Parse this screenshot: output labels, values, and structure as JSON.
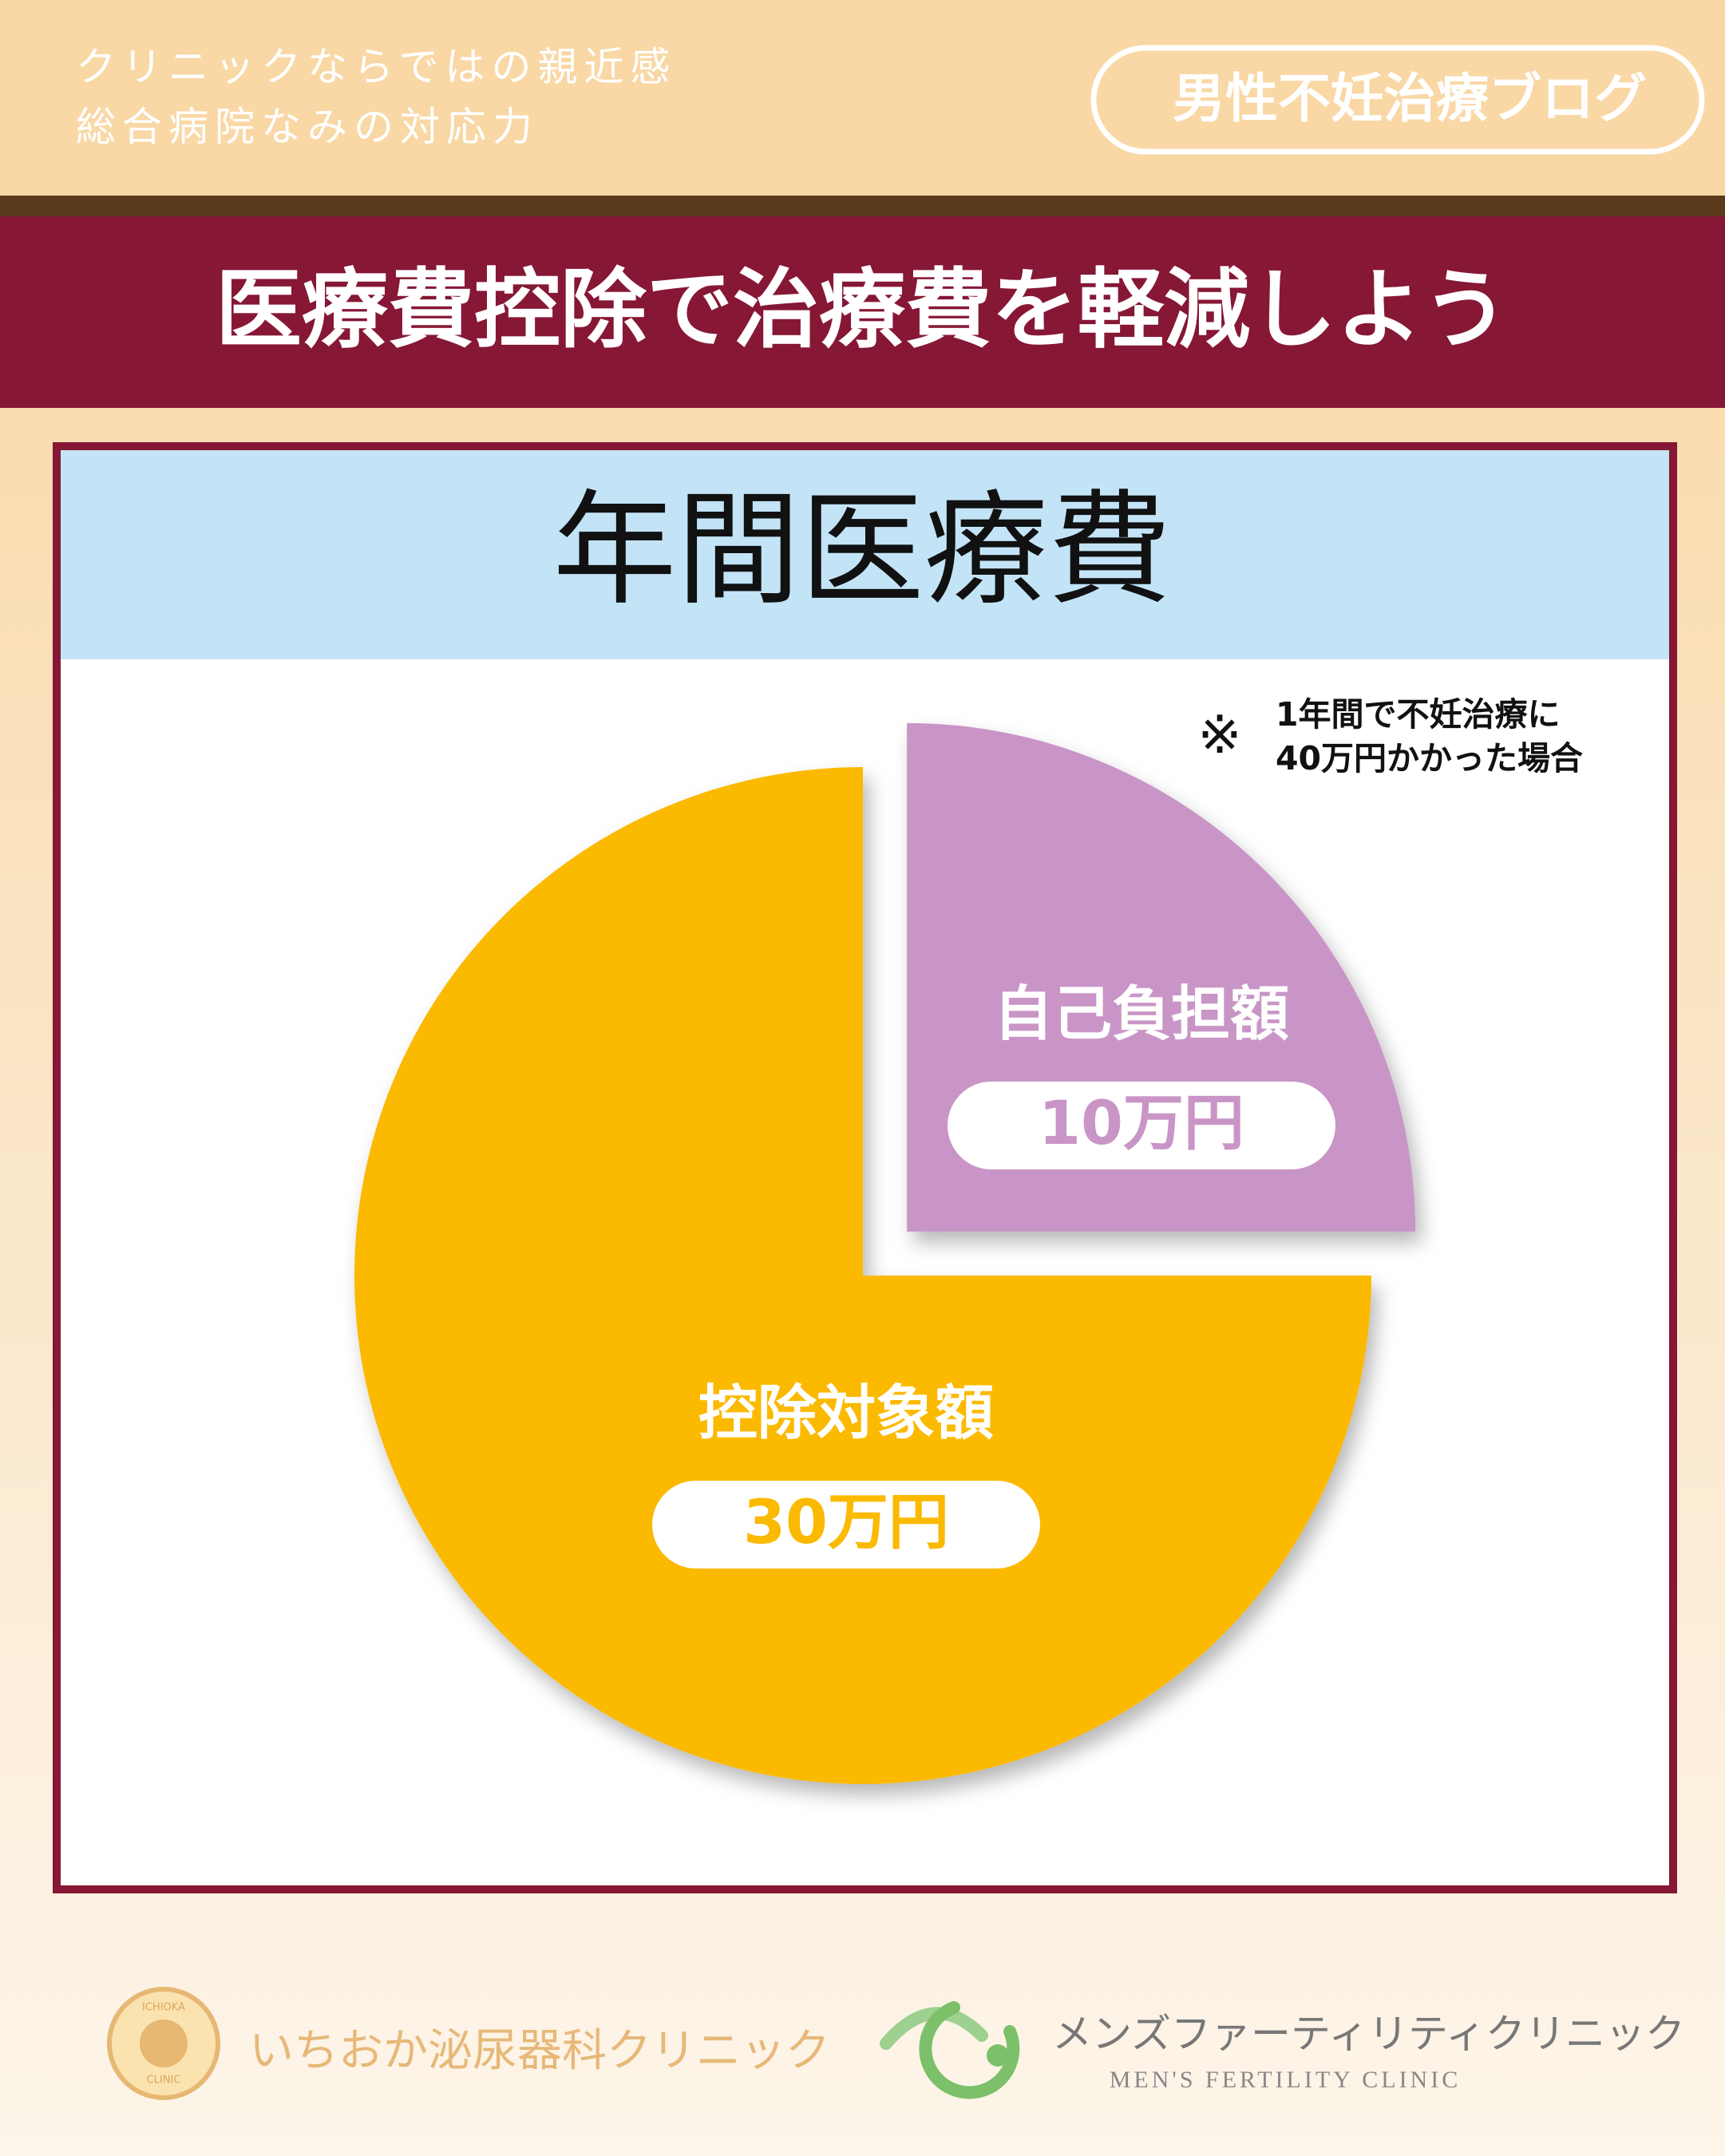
{
  "header": {
    "tagline": [
      "クリニックならではの親近感",
      "総合病院なみの対応力"
    ],
    "badge": "男性不妊治療ブログ"
  },
  "title": "医療費控除で治療費を軽減しよう",
  "chart_data": {
    "type": "pie",
    "title": "年間医療費",
    "categories": [
      "控除対象額",
      "自己負担額"
    ],
    "values": [
      30,
      10
    ],
    "value_labels": [
      "30万円",
      "10万円"
    ],
    "colors": [
      "#fbb900",
      "#c995c6"
    ],
    "explode": [
      false,
      true
    ],
    "annotation": [
      "※",
      "1年間で不妊治療に",
      "40万円かかった場合"
    ]
  },
  "footer": {
    "left": {
      "name": "いちおか泌尿器科クリニック",
      "emblem_top": "ICHIOKA",
      "emblem_bottom": "CLINIC"
    },
    "right": {
      "name": "メンズファーティリティクリニック",
      "name_en": "MEN'S FERTILITY CLINIC"
    }
  }
}
